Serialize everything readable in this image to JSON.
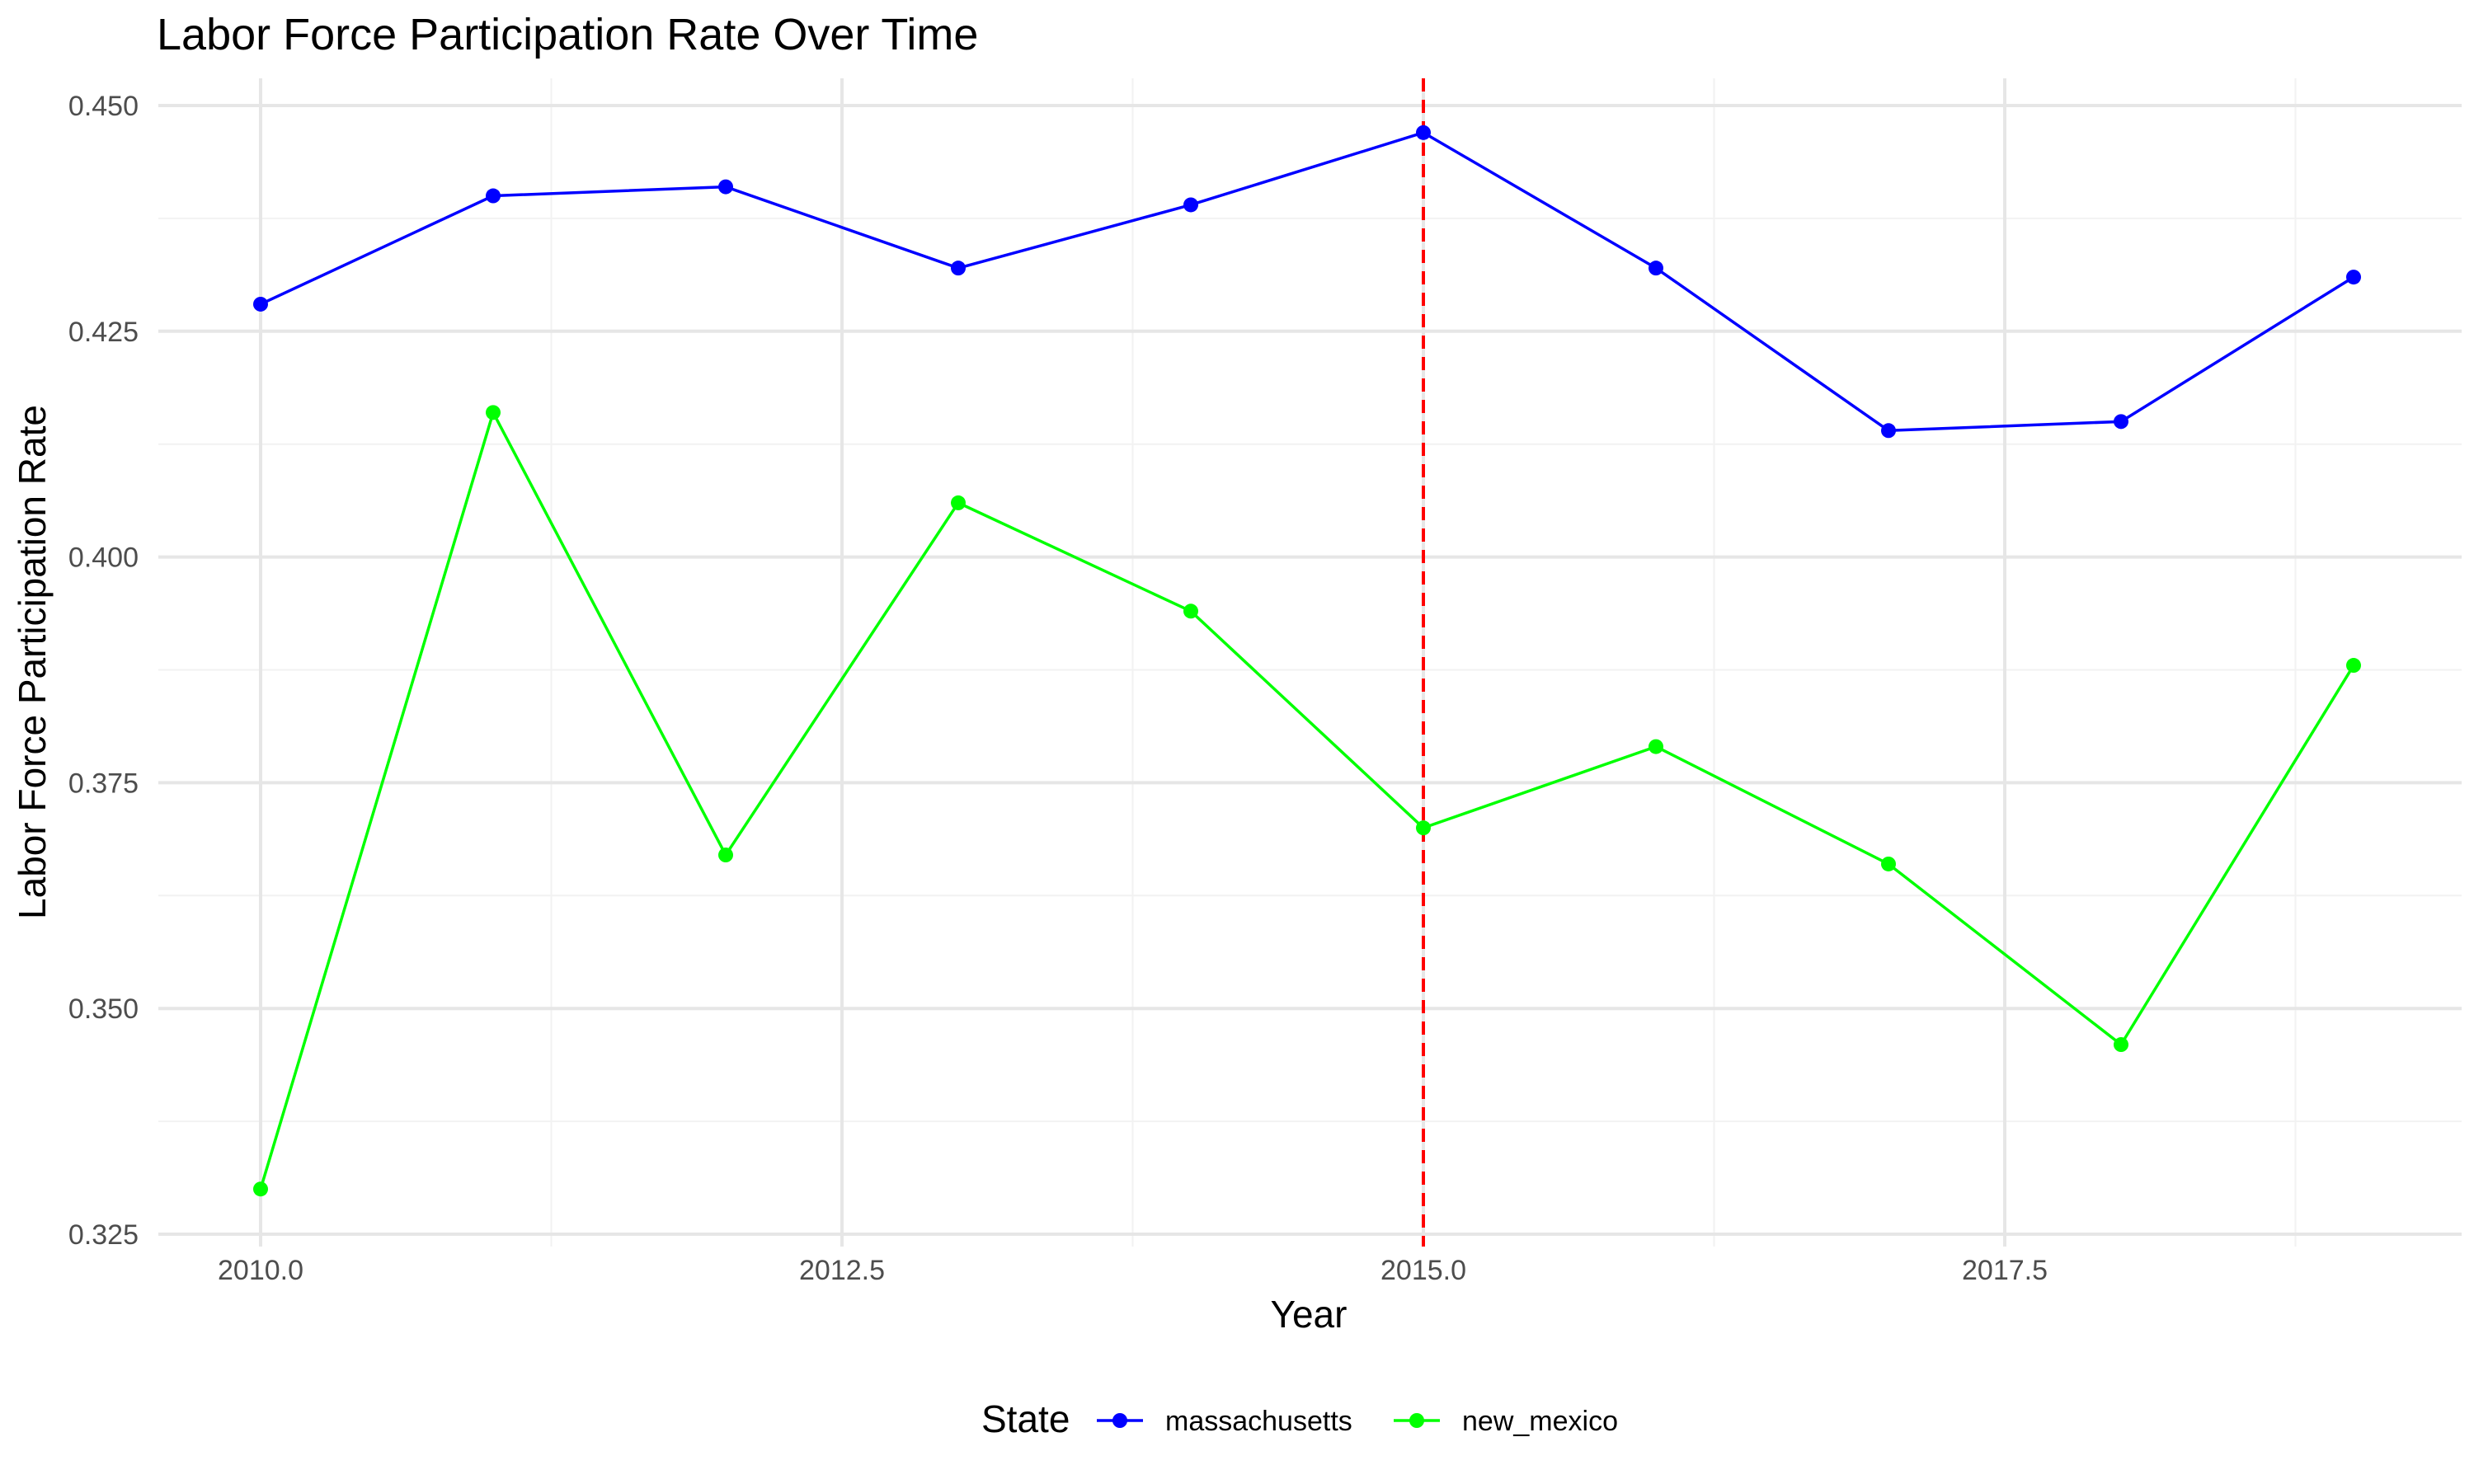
{
  "chart_data": {
    "type": "line",
    "title": "Labor Force Participation Rate Over Time",
    "xlabel": "Year",
    "ylabel": "Labor Force Participation Rate",
    "xlim": [
      2009.9,
      2019.3
    ],
    "ylim": [
      0.325,
      0.453
    ],
    "x_ticks": [
      2010.0,
      2012.5,
      2015.0,
      2017.5
    ],
    "x_tick_labels": [
      "2010.0",
      "2012.5",
      "2015.0",
      "2017.5"
    ],
    "y_ticks": [
      0.325,
      0.35,
      0.375,
      0.4,
      0.425,
      0.45
    ],
    "y_tick_labels": [
      "0.325",
      "0.350",
      "0.375",
      "0.400",
      "0.425",
      "0.450"
    ],
    "grid": true,
    "legend": {
      "title": "State",
      "position": "bottom"
    },
    "reference_line": {
      "axis": "x",
      "value": 2015,
      "style": "dashed",
      "color": "#ff0000"
    },
    "x": [
      2010,
      2011,
      2012,
      2013,
      2014,
      2015,
      2016,
      2017,
      2018,
      2019
    ],
    "series": [
      {
        "name": "massachusetts",
        "color": "#0000ff",
        "values": [
          0.428,
          0.44,
          0.441,
          0.432,
          0.439,
          0.447,
          0.432,
          0.414,
          0.415,
          0.431
        ]
      },
      {
        "name": "new_mexico",
        "color": "#00ff00",
        "values": [
          0.33,
          0.416,
          0.367,
          0.406,
          0.394,
          0.37,
          0.379,
          0.366,
          0.346,
          0.388
        ]
      }
    ]
  }
}
